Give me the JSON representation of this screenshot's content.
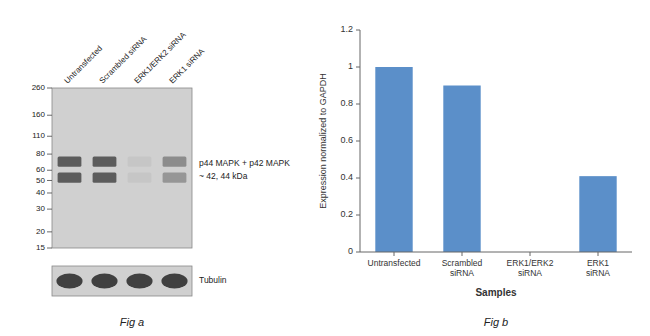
{
  "chart_data": [
    {
      "type": "blot",
      "title": "Fig a",
      "categories": [
        "Untransfected",
        "Scrambled siRNA",
        "ERK1/ERK2 siRNA",
        "ERK1 siRNA"
      ],
      "log": "y",
      "ylim": [
        15,
        260
      ],
      "yticks": [
        260,
        160,
        110,
        80,
        60,
        50,
        40,
        30,
        20,
        15
      ],
      "annotations": [
        "p44 MAPK + p42 MAPK",
        "~ 42, 44 kDa",
        "Tubulin"
      ]
    },
    {
      "type": "bar",
      "title": "Fig b",
      "categories": [
        "Untransfected",
        "Scrambled siRNA",
        "ERK1/ERK2 siRNA",
        "ERK1 siRNA"
      ],
      "values": [
        1.0,
        0.9,
        0.0,
        0.41
      ],
      "color": "#5b8fc9",
      "xlabel": "Samples",
      "ylabel": "Expression normalized to GAPDH",
      "ylim": [
        0,
        1.2
      ],
      "yticks": [
        0,
        0.2,
        0.4,
        0.6,
        0.8,
        1.0,
        1.2
      ]
    }
  ]
}
